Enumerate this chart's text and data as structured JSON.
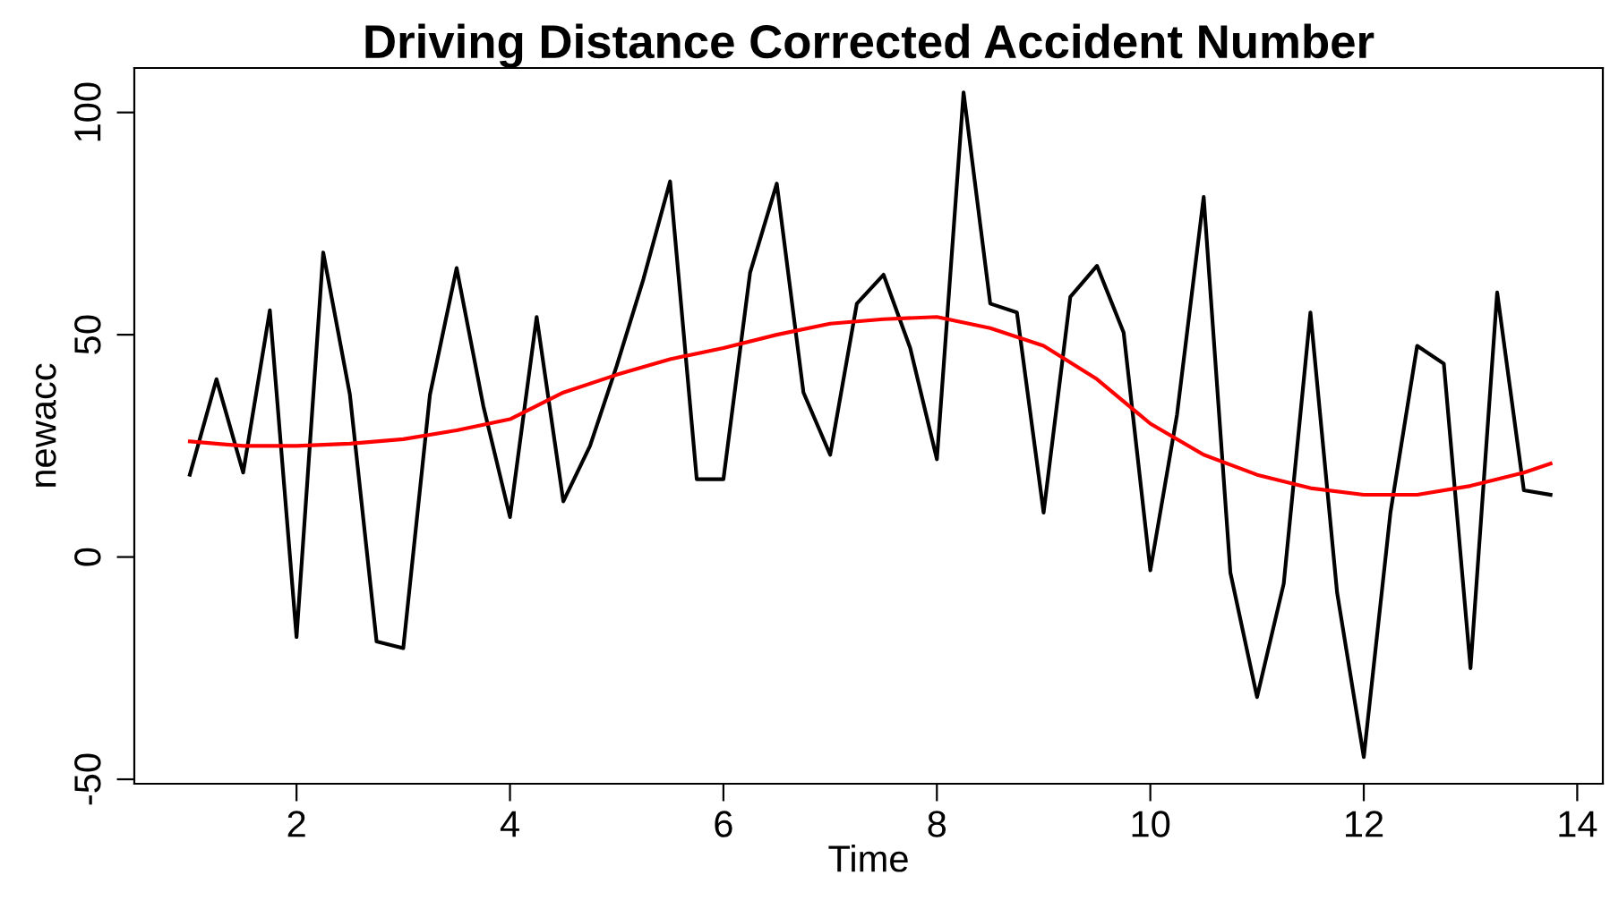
{
  "chart_data": {
    "type": "line",
    "title": "Driving Distance Corrected Accident Number",
    "xlabel": "Time",
    "ylabel": "newacc",
    "xlim": [
      0.48,
      14.24
    ],
    "xticks": [
      2,
      4,
      6,
      8,
      10,
      12,
      14
    ],
    "ylim": [
      -51,
      110
    ],
    "yticks": [
      -50,
      0,
      50,
      100
    ],
    "grid": false,
    "legend": false,
    "line_style": "solid",
    "marker": "none",
    "series": [
      {
        "color": "#000000",
        "x": [
          1,
          1.25,
          1.5,
          1.75,
          2,
          2.25,
          2.5,
          2.75,
          3,
          3.25,
          3.5,
          3.75,
          4,
          4.25,
          4.5,
          4.75,
          5,
          5.25,
          5.5,
          5.75,
          6,
          6.25,
          6.5,
          6.75,
          7,
          7.25,
          7.5,
          7.75,
          8,
          8.25,
          8.5,
          8.75,
          9,
          9.25,
          9.5,
          9.75,
          10,
          10.25,
          10.5,
          10.75,
          11,
          11.25,
          11.5,
          11.75,
          12,
          12.25,
          12.5,
          12.75,
          13,
          13.25,
          13.5,
          13.75
        ],
        "values": [
          18.5,
          40,
          19,
          55.5,
          -18,
          68.5,
          36.5,
          -19,
          -20.5,
          36.5,
          65,
          34,
          9,
          54,
          12.5,
          25,
          43,
          62.5,
          84.5,
          17.5,
          17.5,
          64,
          84,
          37,
          23,
          57,
          63.5,
          47,
          22,
          104.5,
          57,
          55,
          10,
          58.5,
          65.5,
          50.5,
          -3,
          32,
          81,
          -3.5,
          -31.5,
          -6,
          55,
          -8,
          -45,
          10,
          47.5,
          43.5,
          -25,
          59.5,
          15,
          14
        ]
      },
      {
        "color": "#ff0000",
        "x": [
          1,
          1.5,
          2,
          2.5,
          3,
          3.5,
          4,
          4.5,
          5,
          5.5,
          6,
          6.5,
          7,
          7.5,
          8,
          8.5,
          9,
          9.5,
          10,
          10.5,
          11,
          11.5,
          12,
          12.5,
          13,
          13.5,
          13.75
        ],
        "values": [
          26,
          25,
          25,
          25.5,
          26.5,
          28.5,
          31,
          37,
          41,
          44.5,
          47,
          50,
          52.5,
          53.5,
          54,
          51.5,
          47.5,
          40,
          30,
          23,
          18.5,
          15.5,
          14,
          14,
          16,
          19,
          21
        ]
      }
    ]
  }
}
